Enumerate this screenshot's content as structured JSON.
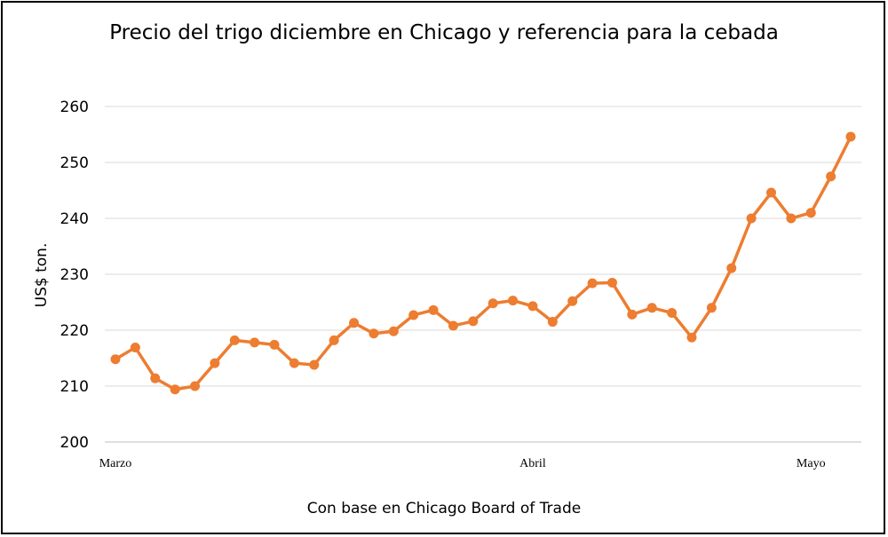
{
  "chart_data": {
    "type": "line",
    "title": "Precio del trigo diciembre en Chicago y referencia para la cebada",
    "xlabel": "Con base en Chicago Board of Trade",
    "ylabel": "US$ ton.",
    "ylim": [
      200,
      260
    ],
    "yticks": [
      "200",
      "210",
      "220",
      "230",
      "240",
      "250",
      "260"
    ],
    "x_tick_labels": [
      {
        "label": "Marzo",
        "index": 0
      },
      {
        "label": "Abril",
        "index": 21
      },
      {
        "label": "Mayo",
        "index": 35
      }
    ],
    "grid": true,
    "color": "#ED7D31",
    "series": [
      {
        "values": [
          214.8,
          216.9,
          211.4,
          209.4,
          210.0,
          214.1,
          218.2,
          217.8,
          217.4,
          214.1,
          213.8,
          218.2,
          221.3,
          219.4,
          219.8,
          222.7,
          223.6,
          220.8,
          221.6,
          224.8,
          225.3,
          224.3,
          221.5,
          225.2,
          228.4,
          228.5,
          222.8,
          224.0,
          223.1,
          218.7,
          224.0,
          231.1,
          240.0,
          244.6,
          240.0,
          241.0,
          247.5,
          254.6
        ]
      }
    ]
  }
}
